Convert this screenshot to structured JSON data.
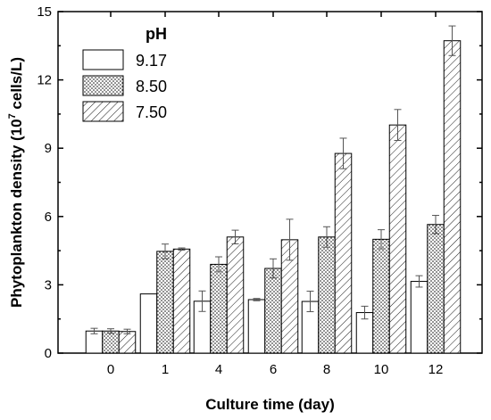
{
  "chart_data": {
    "type": "bar",
    "xlabel": "Culture time (day)",
    "ylabel_main": "Phytoplankton density (10",
    "ylabel_sup": "7",
    "ylabel_tail": " cells/L)",
    "categories": [
      "0",
      "1",
      "4",
      "6",
      "8",
      "10",
      "12"
    ],
    "ylim": [
      0,
      15
    ],
    "yticks": [
      "0",
      "3",
      "6",
      "9",
      "12",
      "15"
    ],
    "legend_title": "pH",
    "legend_position": "top-left",
    "series": [
      {
        "name": "9.17",
        "pattern": "blank",
        "values": [
          0.97,
          2.6,
          2.28,
          2.35,
          2.27,
          1.78,
          3.15
        ],
        "errors": [
          0.12,
          0.0,
          0.45,
          0.05,
          0.45,
          0.28,
          0.25
        ]
      },
      {
        "name": "8.50",
        "pattern": "dots",
        "values": [
          0.97,
          4.47,
          3.9,
          3.72,
          5.1,
          5.0,
          5.65
        ],
        "errors": [
          0.1,
          0.32,
          0.33,
          0.42,
          0.45,
          0.42,
          0.4
        ]
      },
      {
        "name": "7.50",
        "pattern": "hatch",
        "values": [
          0.95,
          4.57,
          5.1,
          4.98,
          8.77,
          10.02,
          13.72
        ],
        "errors": [
          0.1,
          0.05,
          0.3,
          0.9,
          0.67,
          0.68,
          0.65
        ]
      }
    ]
  }
}
